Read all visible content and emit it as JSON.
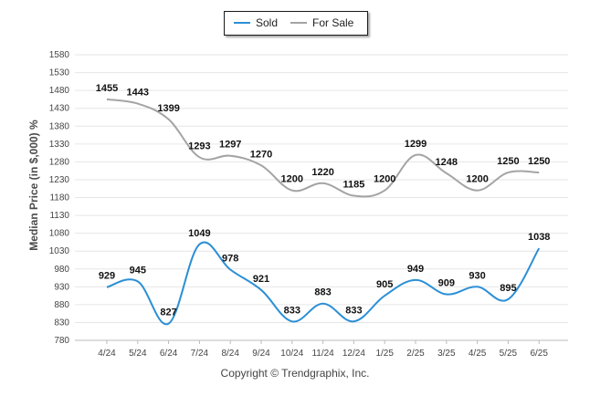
{
  "chart_data": {
    "type": "line",
    "categories": [
      "4/24",
      "5/24",
      "6/24",
      "7/24",
      "8/24",
      "9/24",
      "10/24",
      "11/24",
      "12/24",
      "1/25",
      "2/25",
      "3/25",
      "4/25",
      "5/25",
      "6/25"
    ],
    "series": [
      {
        "name": "Sold",
        "color": "#2b8fd6",
        "values": [
          929,
          945,
          827,
          1049,
          978,
          921,
          833,
          883,
          833,
          905,
          949,
          909,
          930,
          895,
          1038
        ]
      },
      {
        "name": "For Sale",
        "color": "#a4a4a4",
        "values": [
          1455,
          1443,
          1399,
          1293,
          1297,
          1270,
          1200,
          1220,
          1185,
          1200,
          1299,
          1248,
          1200,
          1250,
          1250
        ]
      }
    ],
    "ylabel": "Median Price (in $,000) %",
    "xlabel": "",
    "ylim": [
      780,
      1580
    ],
    "yticks": [
      780,
      830,
      880,
      930,
      980,
      1030,
      1080,
      1130,
      1180,
      1230,
      1280,
      1330,
      1380,
      1430,
      1480,
      1530,
      1580
    ],
    "grid": true,
    "legend_position": "top-center",
    "data_labels": true
  },
  "footer": {
    "copyright": "Copyright © Trendgraphix, Inc."
  }
}
